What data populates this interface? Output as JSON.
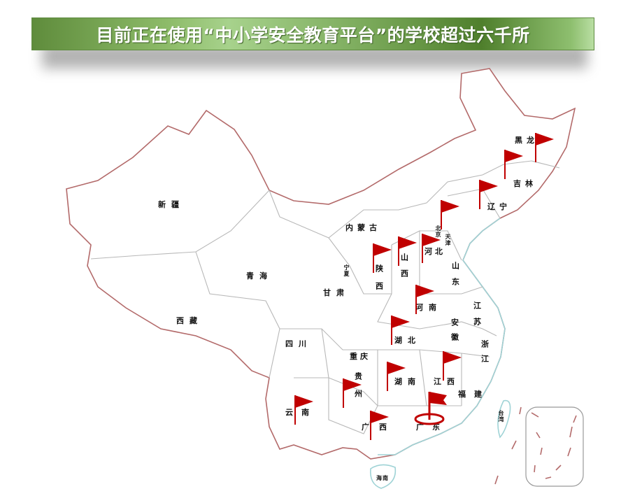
{
  "title": "目前正在使用“中小学安全教育平台”的学校超过六千所",
  "colors": {
    "flag": "#c00000",
    "title_bar": "#6e9e4c",
    "border": "#b36a6a",
    "coast": "#9fd3d6"
  },
  "provinces": {
    "xinjiang": "新疆",
    "xizang": "西藏",
    "qinghai": "青海",
    "gansu": "甘肃",
    "neimenggu": "内蒙古",
    "ningxia": "宁夏",
    "shaanxi": "陕西",
    "shanxi": "山西",
    "hebei": "河北",
    "beijing": "北京",
    "tianjin": "天津",
    "shandong": "山东",
    "henan": "河南",
    "jiangsu": "江苏",
    "anhui": "安徽",
    "hubei": "湖北",
    "sichuan": "四川",
    "chongqing": "重庆",
    "zhejiang": "浙江",
    "guizhou": "贵州",
    "hunan": "湖南",
    "jiangxi": "江西",
    "fujian": "福建",
    "yunnan": "云南",
    "guangxi": "广西",
    "guangdong": "广东",
    "hainan": "海南",
    "taiwan": "台湾",
    "heilongjiang": "黑龙",
    "jilin": "吉林",
    "liaoning": "辽宁"
  },
  "flags": {
    "icon": "red-flag-icon",
    "highlighted": "guangdong"
  }
}
